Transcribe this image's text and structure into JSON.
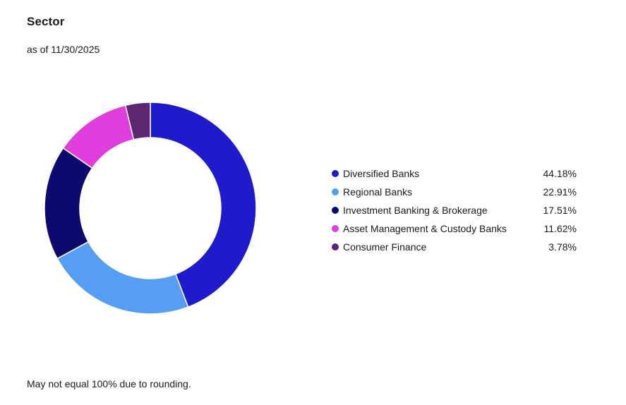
{
  "header": {
    "title": "Sector",
    "as_of": "as of 11/30/2025"
  },
  "chart_data": {
    "type": "pie",
    "style": "donut",
    "title": "Sector",
    "legend_position": "right",
    "series": [
      {
        "name": "Diversified Banks",
        "value": 44.18,
        "label": "44.18%",
        "color": "#1f1acb"
      },
      {
        "name": "Regional Banks",
        "value": 22.91,
        "label": "22.91%",
        "color": "#559ef4"
      },
      {
        "name": "Investment Banking & Brokerage",
        "value": 17.51,
        "label": "17.51%",
        "color": "#0c0a6f"
      },
      {
        "name": "Asset Management & Custody Banks",
        "value": 11.62,
        "label": "11.62%",
        "color": "#e03ddd"
      },
      {
        "name": "Consumer Finance",
        "value": 3.78,
        "label": "3.78%",
        "color": "#5c2670"
      }
    ]
  },
  "footnote": "May not equal 100% due to rounding."
}
